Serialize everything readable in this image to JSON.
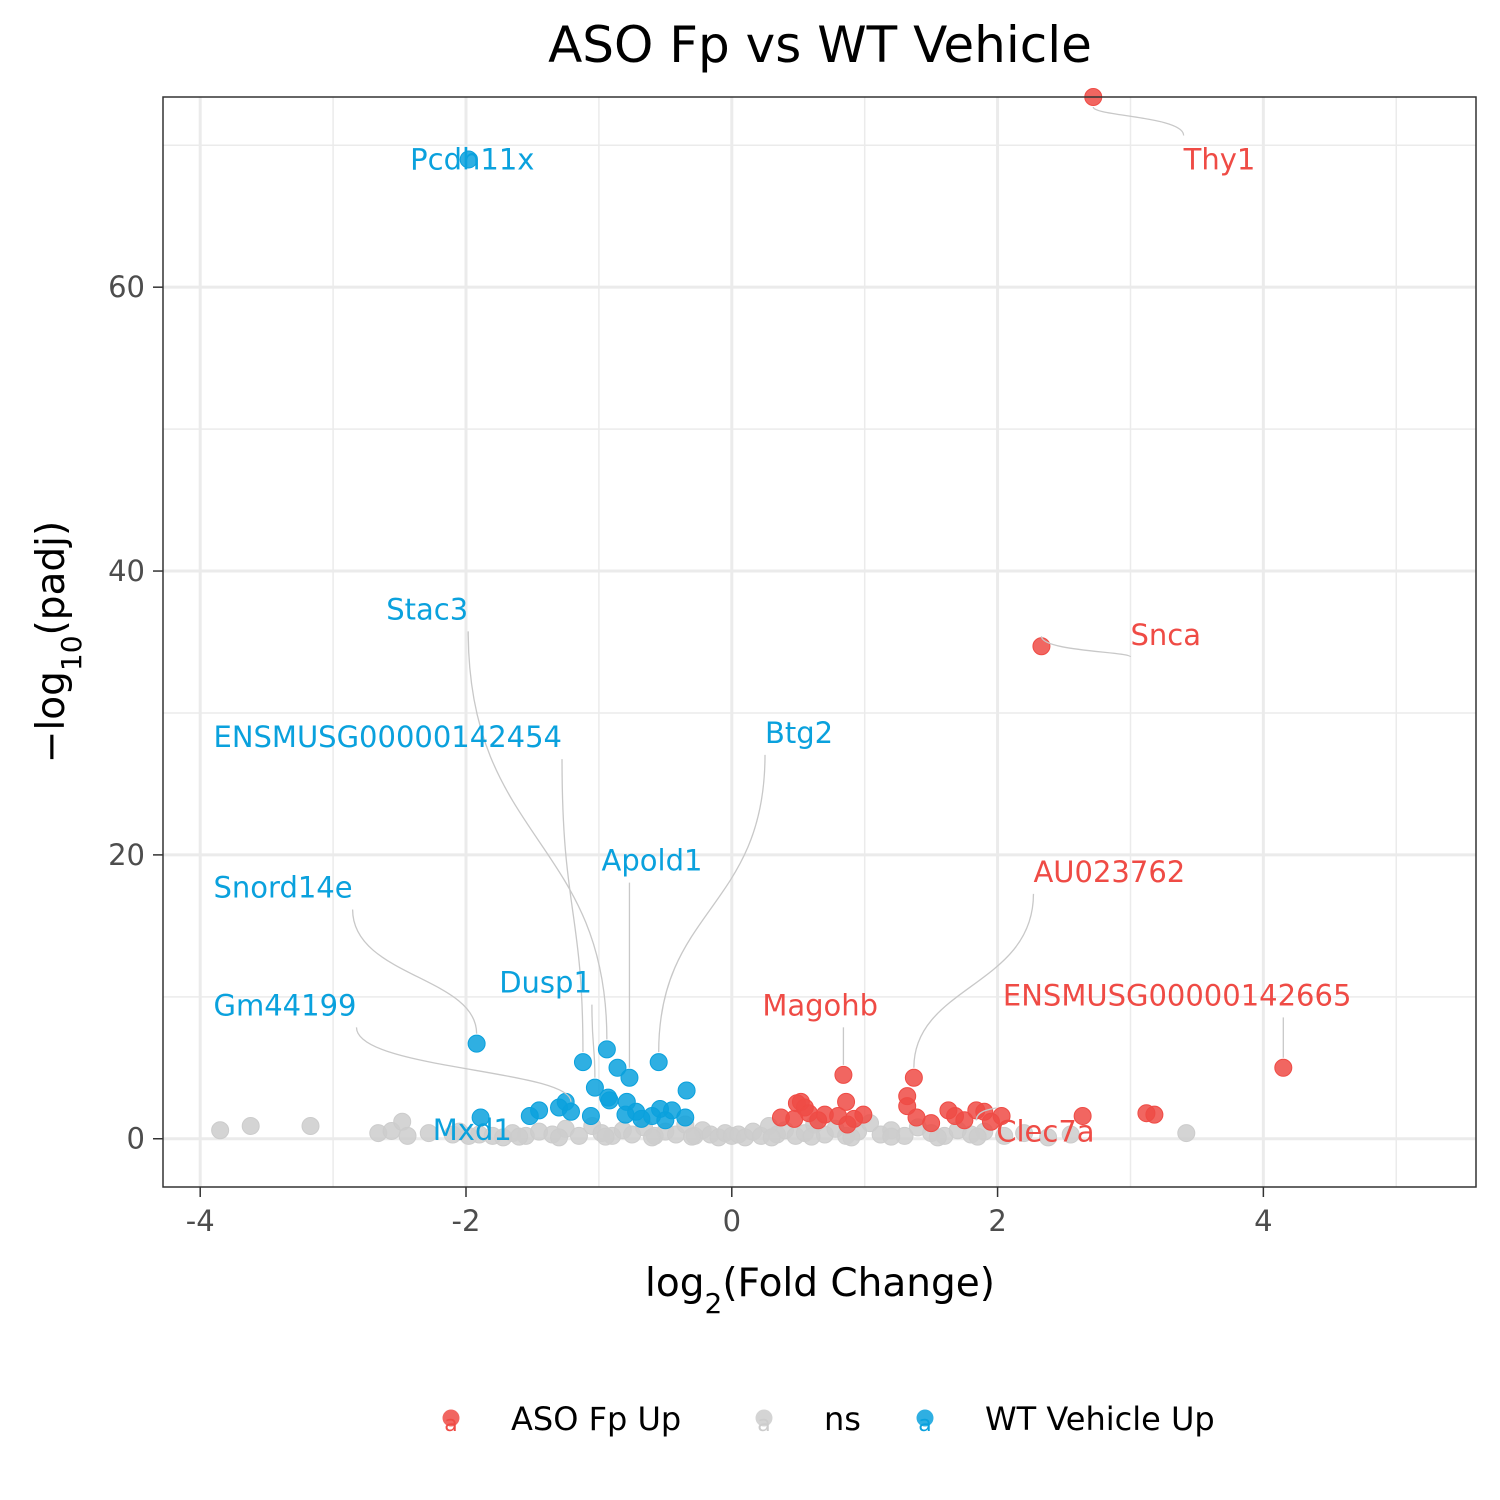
{
  "chart_data": {
    "type": "scatter",
    "title": "ASO Fp vs WT Vehicle",
    "xlabel_prefix": "log",
    "xlabel_sub": "2",
    "xlabel_rest": "(Fold Change)",
    "ylabel_prefix": "−log",
    "ylabel_sub": "10",
    "ylabel_rest": "(padj)",
    "xlim": [
      -4.28,
      5.6
    ],
    "ylim": [
      -3.4,
      73.4
    ],
    "x_ticks": [
      -4,
      -2,
      0,
      2,
      4
    ],
    "x_tick_labels": [
      "-4",
      "-2",
      "0",
      "2",
      "4"
    ],
    "y_ticks": [
      0,
      20,
      40,
      60
    ],
    "y_tick_labels": [
      "0",
      "20",
      "40",
      "60"
    ],
    "grid": true,
    "legend_position": "bottom",
    "colors": {
      "ASO Fp Up": "#ef4b45",
      "ns": "#cccccc",
      "WT Vehicle Up": "#0aa1dd"
    },
    "legend": [
      {
        "name": "ASO Fp Up",
        "color": "#ef4b45"
      },
      {
        "name": "ns",
        "color": "#cccccc"
      },
      {
        "name": "WT Vehicle Up",
        "color": "#0aa1dd"
      }
    ],
    "series": [
      {
        "name": "ns",
        "points": [
          [
            -3.85,
            0.6
          ],
          [
            -3.62,
            0.9
          ],
          [
            -3.17,
            0.9
          ],
          [
            -2.66,
            0.4
          ],
          [
            -2.56,
            0.55
          ],
          [
            -2.48,
            1.2
          ],
          [
            -2.44,
            0.2
          ],
          [
            -2.28,
            0.4
          ],
          [
            -2.1,
            0.3
          ],
          [
            -2.05,
            0.5
          ],
          [
            -1.9,
            0.3
          ],
          [
            -1.8,
            0.2
          ],
          [
            -1.72,
            0.1
          ],
          [
            -1.65,
            0.4
          ],
          [
            -1.55,
            0.2
          ],
          [
            -1.45,
            0.5
          ],
          [
            -1.35,
            0.3
          ],
          [
            -1.25,
            0.7
          ],
          [
            -1.15,
            0.2
          ],
          [
            -1.05,
            0.9
          ],
          [
            -0.98,
            0.4
          ],
          [
            -0.9,
            0.2
          ],
          [
            -0.82,
            0.6
          ],
          [
            -0.75,
            0.3
          ],
          [
            -0.66,
            0.8
          ],
          [
            -0.58,
            0.2
          ],
          [
            -0.5,
            0.5
          ],
          [
            -0.42,
            0.3
          ],
          [
            -0.35,
            1.0
          ],
          [
            -0.28,
            0.2
          ],
          [
            -0.22,
            0.6
          ],
          [
            -0.16,
            0.3
          ],
          [
            -0.1,
            0.1
          ],
          [
            -0.05,
            0.4
          ],
          [
            0.0,
            0.2
          ],
          [
            0.05,
            0.3
          ],
          [
            0.1,
            0.1
          ],
          [
            0.16,
            0.5
          ],
          [
            0.22,
            0.2
          ],
          [
            0.28,
            0.9
          ],
          [
            0.34,
            0.3
          ],
          [
            0.4,
            0.6
          ],
          [
            0.48,
            0.2
          ],
          [
            0.55,
            0.4
          ],
          [
            0.62,
            1.0
          ],
          [
            0.7,
            0.3
          ],
          [
            0.78,
            0.7
          ],
          [
            0.86,
            0.2
          ],
          [
            0.95,
            0.5
          ],
          [
            1.04,
            1.1
          ],
          [
            1.12,
            0.3
          ],
          [
            1.2,
            0.6
          ],
          [
            1.3,
            0.2
          ],
          [
            1.4,
            0.8
          ],
          [
            1.5,
            0.4
          ],
          [
            1.6,
            0.2
          ],
          [
            1.7,
            0.6
          ],
          [
            1.8,
            0.3
          ],
          [
            1.9,
            0.5
          ],
          [
            2.05,
            0.2
          ],
          [
            2.2,
            0.4
          ],
          [
            2.38,
            0.1
          ],
          [
            2.55,
            0.3
          ],
          [
            3.42,
            0.4
          ],
          [
            -1.98,
            0.2
          ],
          [
            -1.6,
            0.15
          ],
          [
            -1.3,
            0.1
          ],
          [
            -0.95,
            0.15
          ],
          [
            -0.6,
            0.1
          ],
          [
            -0.3,
            0.15
          ],
          [
            0.3,
            0.1
          ],
          [
            0.6,
            0.15
          ],
          [
            0.9,
            0.1
          ],
          [
            1.2,
            0.15
          ],
          [
            1.55,
            0.1
          ],
          [
            1.85,
            0.15
          ]
        ]
      },
      {
        "name": "WT Vehicle Up",
        "points": [
          [
            -1.98,
            69.0
          ],
          [
            -1.92,
            6.7
          ],
          [
            -0.94,
            6.3
          ],
          [
            -0.55,
            5.4
          ],
          [
            -1.12,
            5.4
          ],
          [
            -0.86,
            5.0
          ],
          [
            -0.77,
            4.3
          ],
          [
            -1.03,
            3.6
          ],
          [
            -0.34,
            3.4
          ],
          [
            -0.93,
            2.9
          ],
          [
            -0.92,
            2.7
          ],
          [
            -0.79,
            2.6
          ],
          [
            -1.25,
            2.6
          ],
          [
            -1.3,
            2.2
          ],
          [
            -1.45,
            2.0
          ],
          [
            -1.21,
            1.9
          ],
          [
            -0.45,
            2.0
          ],
          [
            -0.54,
            2.1
          ],
          [
            -0.72,
            1.9
          ],
          [
            -0.8,
            1.7
          ],
          [
            -1.52,
            1.6
          ],
          [
            -1.06,
            1.6
          ],
          [
            -0.6,
            1.6
          ],
          [
            -0.35,
            1.5
          ],
          [
            -1.89,
            1.5
          ],
          [
            -0.68,
            1.4
          ],
          [
            -0.5,
            1.3
          ]
        ]
      },
      {
        "name": "ASO Fp Up",
        "points": [
          [
            2.72,
            73.4
          ],
          [
            2.33,
            34.7
          ],
          [
            4.15,
            5.0
          ],
          [
            0.84,
            4.5
          ],
          [
            1.37,
            4.3
          ],
          [
            1.32,
            3.0
          ],
          [
            0.52,
            2.6
          ],
          [
            0.49,
            2.5
          ],
          [
            1.32,
            2.3
          ],
          [
            0.86,
            2.6
          ],
          [
            0.55,
            2.2
          ],
          [
            1.63,
            2.0
          ],
          [
            1.84,
            2.0
          ],
          [
            1.9,
            1.9
          ],
          [
            0.58,
            1.8
          ],
          [
            3.12,
            1.8
          ],
          [
            0.7,
            1.7
          ],
          [
            0.99,
            1.7
          ],
          [
            3.18,
            1.7
          ],
          [
            2.03,
            1.6
          ],
          [
            0.8,
            1.6
          ],
          [
            1.68,
            1.6
          ],
          [
            2.64,
            1.6
          ],
          [
            0.37,
            1.5
          ],
          [
            1.39,
            1.5
          ],
          [
            0.47,
            1.4
          ],
          [
            0.65,
            1.3
          ],
          [
            0.92,
            1.4
          ],
          [
            1.75,
            1.3
          ],
          [
            1.95,
            1.2
          ],
          [
            1.5,
            1.1
          ],
          [
            0.87,
            1.0
          ]
        ]
      }
    ],
    "labels": [
      {
        "text": "Thy1",
        "group": "ASO Fp Up",
        "x": 2.72,
        "y": 73.4,
        "lx": 3.4,
        "ly": 69.0
      },
      {
        "text": "Pcdh11x",
        "group": "WT Vehicle Up",
        "x": -1.98,
        "y": 69.0,
        "lx": -2.42,
        "ly": 69.0
      },
      {
        "text": "Snca",
        "group": "ASO Fp Up",
        "x": 2.33,
        "y": 34.7,
        "lx": 3.0,
        "ly": 35.5
      },
      {
        "text": "Stac3",
        "group": "WT Vehicle Up",
        "x": -0.94,
        "y": 6.3,
        "lx": -2.6,
        "ly": 37.3
      },
      {
        "text": "ENSMUSG00000142454",
        "group": "WT Vehicle Up",
        "x": -1.12,
        "y": 5.4,
        "lx": -3.9,
        "ly": 28.3
      },
      {
        "text": "Btg2",
        "group": "WT Vehicle Up",
        "x": -0.55,
        "y": 5.4,
        "lx": 0.25,
        "ly": 28.6
      },
      {
        "text": "Apold1",
        "group": "WT Vehicle Up",
        "x": -0.77,
        "y": 4.3,
        "lx": -0.98,
        "ly": 19.6
      },
      {
        "text": "AU023762",
        "group": "ASO Fp Up",
        "x": 1.37,
        "y": 4.3,
        "lx": 2.27,
        "ly": 18.8
      },
      {
        "text": "Snord14e",
        "group": "WT Vehicle Up",
        "x": -1.92,
        "y": 6.7,
        "lx": -3.9,
        "ly": 17.7
      },
      {
        "text": "Dusp1",
        "group": "WT Vehicle Up",
        "x": -1.03,
        "y": 3.6,
        "lx": -1.75,
        "ly": 11.0
      },
      {
        "text": "Magohb",
        "group": "ASO Fp Up",
        "x": 0.84,
        "y": 4.5,
        "lx": 0.23,
        "ly": 9.4
      },
      {
        "text": "ENSMUSG00000142665",
        "group": "ASO Fp Up",
        "x": 4.15,
        "y": 5.0,
        "lx": 2.04,
        "ly": 10.1
      },
      {
        "text": "Gm44199",
        "group": "WT Vehicle Up",
        "x": -1.21,
        "y": 1.9,
        "lx": -3.9,
        "ly": 9.4
      },
      {
        "text": "Mxd1",
        "group": "WT Vehicle Up",
        "x": -1.89,
        "y": 1.5,
        "lx": -2.25,
        "ly": 0.6
      },
      {
        "text": "Clec7a",
        "group": "ASO Fp Up",
        "x": 1.84,
        "y": 2.0,
        "lx": 1.99,
        "ly": 0.5
      }
    ]
  }
}
